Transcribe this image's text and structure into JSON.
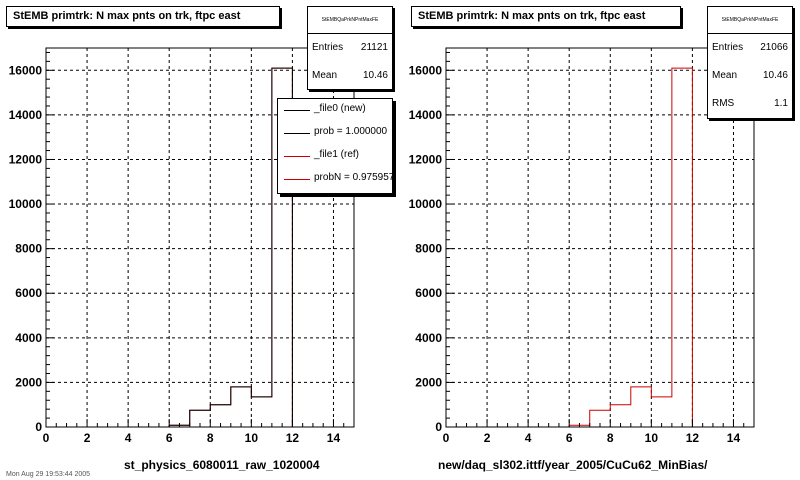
{
  "colors": {
    "ref": "#cc0000",
    "new": "#000000",
    "frame": "#000000"
  },
  "footer_text": "Mon Aug 29 19:53:44 2005",
  "panels": [
    {
      "title": "StEMB primtrk: N max pnts on trk, ftpc east",
      "stats": {
        "name": "StEMBQaPrkNPntMaxFE",
        "rows": [
          {
            "key": "Entries",
            "value": "21121"
          },
          {
            "key": "Mean",
            "value": "10.46"
          }
        ]
      },
      "legend": [
        {
          "label": "_file0 (new)",
          "color": "#000000"
        },
        {
          "label": "prob = 1.000000",
          "color": "#000000"
        },
        {
          "label": "_file1 (ref)",
          "color": "#cc0000"
        },
        {
          "label": "probN = 0.975957",
          "color": "#cc0000"
        }
      ],
      "xlabel": "st_physics_6080011_raw_1020004"
    },
    {
      "title": "StEMB primtrk: N max pnts on trk, ftpc east",
      "stats": {
        "name": "StEMBQaPrkNPntMaxFE",
        "rows": [
          {
            "key": "Entries",
            "value": "21066"
          },
          {
            "key": "Mean",
            "value": "10.46"
          },
          {
            "key": "RMS",
            "value": "1.1"
          }
        ]
      },
      "legend": [],
      "xlabel": "new/daq_sl302.ittf/year_2005/CuCu62_MinBias/"
    }
  ],
  "chart_data": [
    {
      "type": "bar",
      "style": "step-histogram",
      "title": "StEMB primtrk: N max pnts on trk, ftpc east",
      "xlabel": "st_physics_6080011_raw_1020004",
      "ylabel": "",
      "xlim": [
        0,
        15
      ],
      "ylim": [
        0,
        17000
      ],
      "xticks": [
        0,
        2,
        4,
        6,
        8,
        10,
        12,
        14
      ],
      "yticks": [
        0,
        2000,
        4000,
        6000,
        8000,
        10000,
        12000,
        14000,
        16000
      ],
      "grid": true,
      "legend_position": "top-right",
      "bin_edges": [
        0,
        1,
        2,
        3,
        4,
        5,
        6,
        7,
        8,
        9,
        10,
        11,
        12,
        13,
        14,
        15
      ],
      "series": [
        {
          "name": "_file1 (ref)",
          "color": "#cc0000",
          "values": [
            0,
            0,
            0,
            0,
            0,
            0,
            80,
            750,
            1000,
            1800,
            1350,
            16100,
            0,
            0,
            0
          ]
        },
        {
          "name": "_file0 (new)",
          "color": "#000000",
          "values": [
            0,
            0,
            0,
            0,
            0,
            0,
            80,
            750,
            1000,
            1800,
            1350,
            16100,
            0,
            0,
            0
          ]
        }
      ]
    },
    {
      "type": "bar",
      "style": "step-histogram",
      "title": "StEMB primtrk: N max pnts on trk, ftpc east",
      "xlabel": "new/daq_sl302.ittf/year_2005/CuCu62_MinBias/",
      "ylabel": "",
      "xlim": [
        0,
        15
      ],
      "ylim": [
        0,
        17000
      ],
      "xticks": [
        0,
        2,
        4,
        6,
        8,
        10,
        12,
        14
      ],
      "yticks": [
        0,
        2000,
        4000,
        6000,
        8000,
        10000,
        12000,
        14000,
        16000
      ],
      "grid": true,
      "bin_edges": [
        0,
        1,
        2,
        3,
        4,
        5,
        6,
        7,
        8,
        9,
        10,
        11,
        12,
        13,
        14,
        15
      ],
      "series": [
        {
          "color": "#cc0000",
          "values": [
            0,
            0,
            0,
            0,
            0,
            0,
            80,
            750,
            1000,
            1800,
            1350,
            16100,
            0,
            0,
            0
          ]
        }
      ]
    }
  ]
}
